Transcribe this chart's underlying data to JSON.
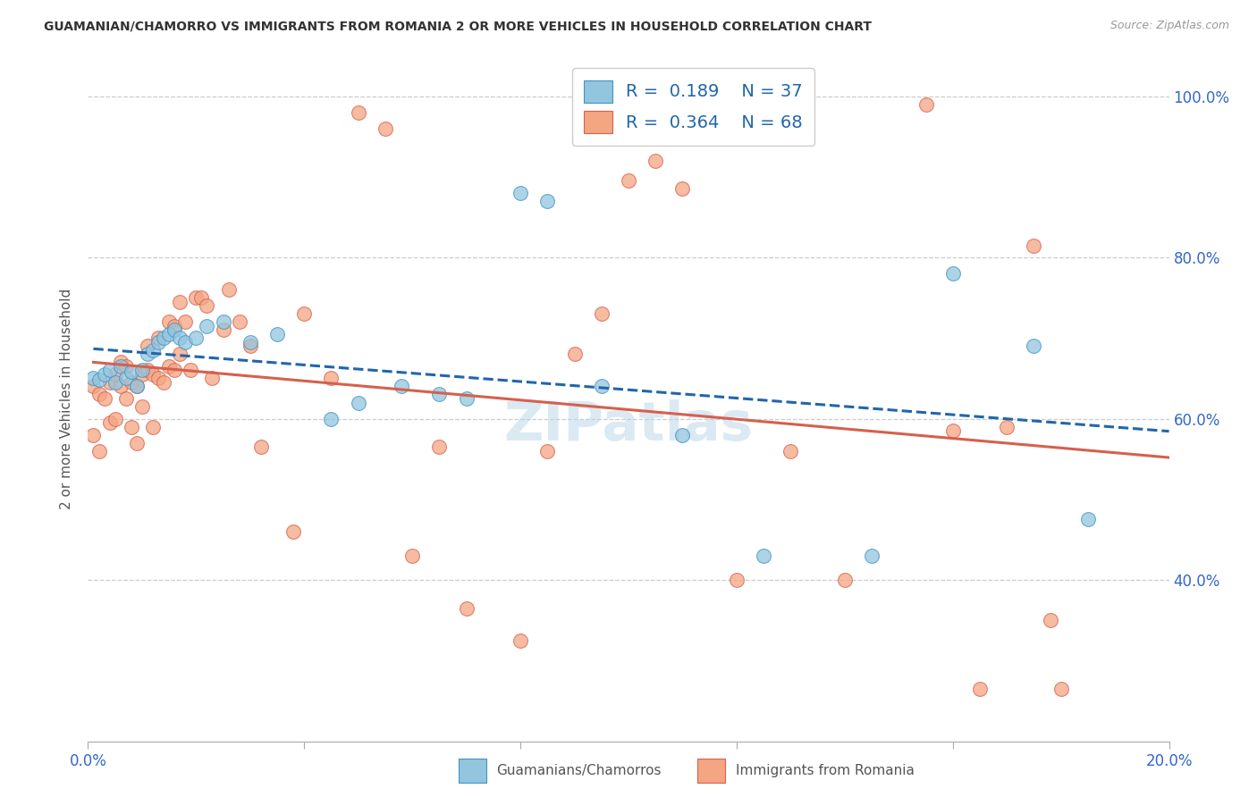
{
  "title": "GUAMANIAN/CHAMORRO VS IMMIGRANTS FROM ROMANIA 2 OR MORE VEHICLES IN HOUSEHOLD CORRELATION CHART",
  "source": "Source: ZipAtlas.com",
  "ylabel": "2 or more Vehicles in Household",
  "x_min": 0.0,
  "x_max": 0.2,
  "y_min": 0.2,
  "y_max": 1.05,
  "x_tick_positions": [
    0.0,
    0.04,
    0.08,
    0.12,
    0.16,
    0.2
  ],
  "x_tick_labels": [
    "0.0%",
    "",
    "",
    "",
    "",
    "20.0%"
  ],
  "y_tick_positions": [
    0.4,
    0.6,
    0.8,
    1.0
  ],
  "y_tick_labels": [
    "40.0%",
    "60.0%",
    "80.0%",
    "100.0%"
  ],
  "watermark": "ZIPatlas",
  "legend_r1": "0.189",
  "legend_n1": "37",
  "legend_r2": "0.364",
  "legend_n2": "68",
  "color_blue": "#92c5de",
  "color_blue_edge": "#4393c3",
  "color_pink": "#f4a582",
  "color_pink_edge": "#d6604d",
  "color_trend_blue": "#2166ac",
  "color_trend_pink": "#d6604d",
  "blue_x": [
    0.001,
    0.002,
    0.003,
    0.004,
    0.005,
    0.006,
    0.007,
    0.008,
    0.009,
    0.01,
    0.011,
    0.012,
    0.013,
    0.014,
    0.015,
    0.016,
    0.017,
    0.018,
    0.02,
    0.022,
    0.025,
    0.03,
    0.035,
    0.045,
    0.05,
    0.058,
    0.065,
    0.07,
    0.08,
    0.085,
    0.095,
    0.11,
    0.125,
    0.145,
    0.16,
    0.175,
    0.185
  ],
  "blue_y": [
    0.65,
    0.648,
    0.655,
    0.66,
    0.645,
    0.665,
    0.65,
    0.658,
    0.64,
    0.66,
    0.68,
    0.685,
    0.695,
    0.7,
    0.705,
    0.71,
    0.7,
    0.695,
    0.7,
    0.715,
    0.72,
    0.695,
    0.705,
    0.6,
    0.62,
    0.64,
    0.63,
    0.625,
    0.88,
    0.87,
    0.64,
    0.58,
    0.43,
    0.43,
    0.78,
    0.69,
    0.475
  ],
  "pink_x": [
    0.001,
    0.001,
    0.002,
    0.002,
    0.003,
    0.004,
    0.004,
    0.005,
    0.005,
    0.006,
    0.006,
    0.007,
    0.007,
    0.008,
    0.008,
    0.009,
    0.009,
    0.01,
    0.01,
    0.011,
    0.011,
    0.012,
    0.012,
    0.013,
    0.013,
    0.014,
    0.015,
    0.015,
    0.016,
    0.016,
    0.017,
    0.017,
    0.018,
    0.019,
    0.02,
    0.021,
    0.022,
    0.023,
    0.025,
    0.026,
    0.028,
    0.03,
    0.032,
    0.038,
    0.04,
    0.045,
    0.05,
    0.055,
    0.06,
    0.065,
    0.07,
    0.08,
    0.085,
    0.09,
    0.095,
    0.1,
    0.105,
    0.11,
    0.12,
    0.13,
    0.14,
    0.155,
    0.16,
    0.165,
    0.17,
    0.175,
    0.178,
    0.18
  ],
  "pink_y": [
    0.64,
    0.58,
    0.63,
    0.56,
    0.625,
    0.645,
    0.595,
    0.655,
    0.6,
    0.64,
    0.67,
    0.625,
    0.665,
    0.645,
    0.59,
    0.64,
    0.57,
    0.655,
    0.615,
    0.66,
    0.69,
    0.655,
    0.59,
    0.65,
    0.7,
    0.645,
    0.72,
    0.665,
    0.715,
    0.66,
    0.745,
    0.68,
    0.72,
    0.66,
    0.75,
    0.75,
    0.74,
    0.65,
    0.71,
    0.76,
    0.72,
    0.69,
    0.565,
    0.46,
    0.73,
    0.65,
    0.98,
    0.96,
    0.43,
    0.565,
    0.365,
    0.325,
    0.56,
    0.68,
    0.73,
    0.895,
    0.92,
    0.885,
    0.4,
    0.56,
    0.4,
    0.99,
    0.585,
    0.265,
    0.59,
    0.815,
    0.35,
    0.265
  ]
}
